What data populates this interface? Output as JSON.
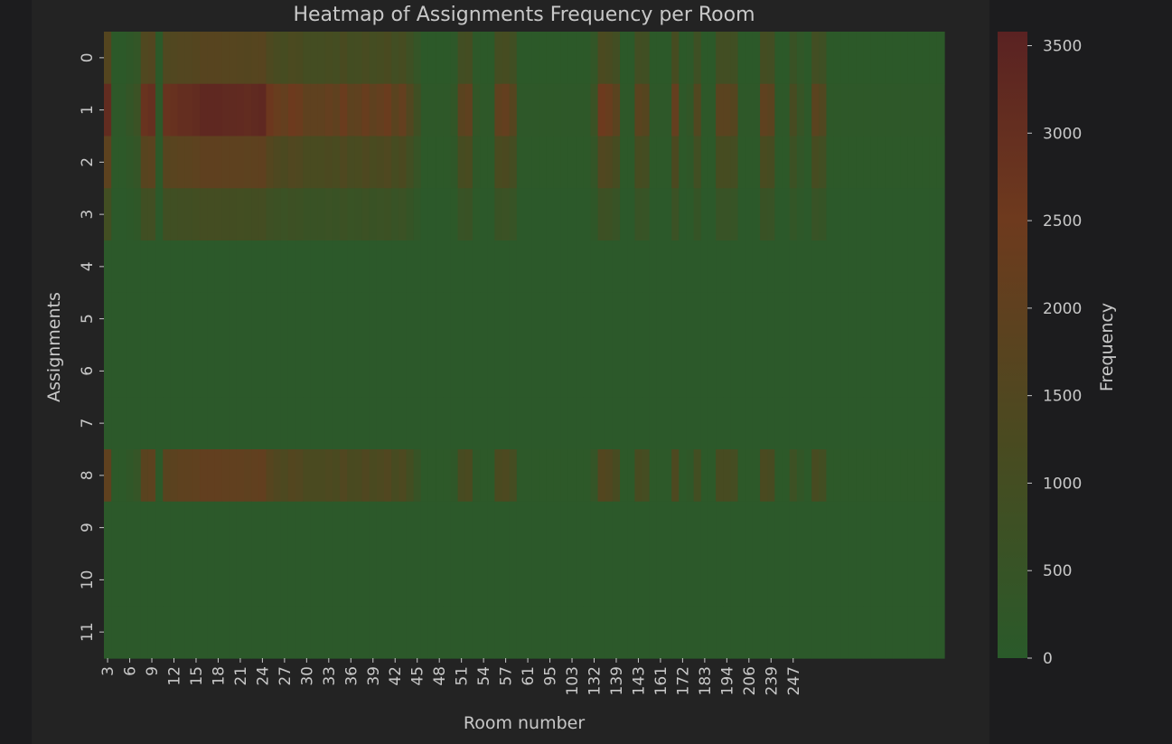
{
  "chart_data": {
    "type": "heatmap",
    "title": "Heatmap of Assignments Frequency per Room",
    "xlabel": "Room number",
    "ylabel": "Assignments",
    "colorbar_label": "Frequency",
    "x_tick_labels": [
      "3",
      "6",
      "9",
      "12",
      "15",
      "18",
      "21",
      "24",
      "27",
      "30",
      "33",
      "36",
      "39",
      "42",
      "45",
      "48",
      "51",
      "54",
      "57",
      "61",
      "95",
      "103",
      "132",
      "139",
      "143",
      "161",
      "172",
      "183",
      "194",
      "206",
      "239",
      "247"
    ],
    "y_tick_labels": [
      "0",
      "1",
      "2",
      "3",
      "4",
      "5",
      "6",
      "7",
      "8",
      "9",
      "10",
      "11"
    ],
    "colorbar_ticks": [
      0,
      500,
      1000,
      1500,
      2000,
      2500,
      3000,
      3500
    ],
    "vmin": 0,
    "vmax": 3580,
    "colormap": [
      "#2a5a2a",
      "#4a4a20",
      "#6e3a1e",
      "#5a2222"
    ],
    "background_color": "#1c1c1e",
    "text_color": "#c8c8c8",
    "grid": false,
    "row_profile": [
      1700,
      3300,
      2000,
      1000,
      60,
      60,
      60,
      60,
      2100,
      60,
      60,
      60
    ],
    "column_weights": [
      0.95,
      0.05,
      0.05,
      0.12,
      0.2,
      0.85,
      0.9,
      0.05,
      0.85,
      0.88,
      0.92,
      0.92,
      0.95,
      1.0,
      1.0,
      1.0,
      0.98,
      0.98,
      0.97,
      0.95,
      0.98,
      1.0,
      0.8,
      0.7,
      0.65,
      0.75,
      0.72,
      0.6,
      0.6,
      0.6,
      0.65,
      0.6,
      0.72,
      0.58,
      0.6,
      0.7,
      0.6,
      0.65,
      0.72,
      0.55,
      0.65,
      0.45,
      0.25,
      0.05,
      0.05,
      0.05,
      0.05,
      0.1,
      0.55,
      0.6,
      0.1,
      0.05,
      0.05,
      0.6,
      0.65,
      0.5,
      0.05,
      0.05,
      0.05,
      0.05,
      0.05,
      0.05,
      0.05,
      0.05,
      0.05,
      0.05,
      0.2,
      0.75,
      0.7,
      0.55,
      0.05,
      0.05,
      0.55,
      0.5,
      0.05,
      0.05,
      0.05,
      0.65,
      0.05,
      0.1,
      0.45,
      0.05,
      0.05,
      0.55,
      0.55,
      0.5,
      0.05,
      0.05,
      0.05,
      0.6,
      0.55,
      0.05,
      0.05,
      0.35,
      0.15,
      0.05,
      0.55,
      0.45,
      0.05,
      0.05,
      0.05,
      0.05,
      0.05,
      0.05,
      0.05,
      0.05,
      0.05,
      0.05,
      0.05,
      0.05,
      0.05,
      0.05,
      0.05,
      0.05
    ]
  }
}
